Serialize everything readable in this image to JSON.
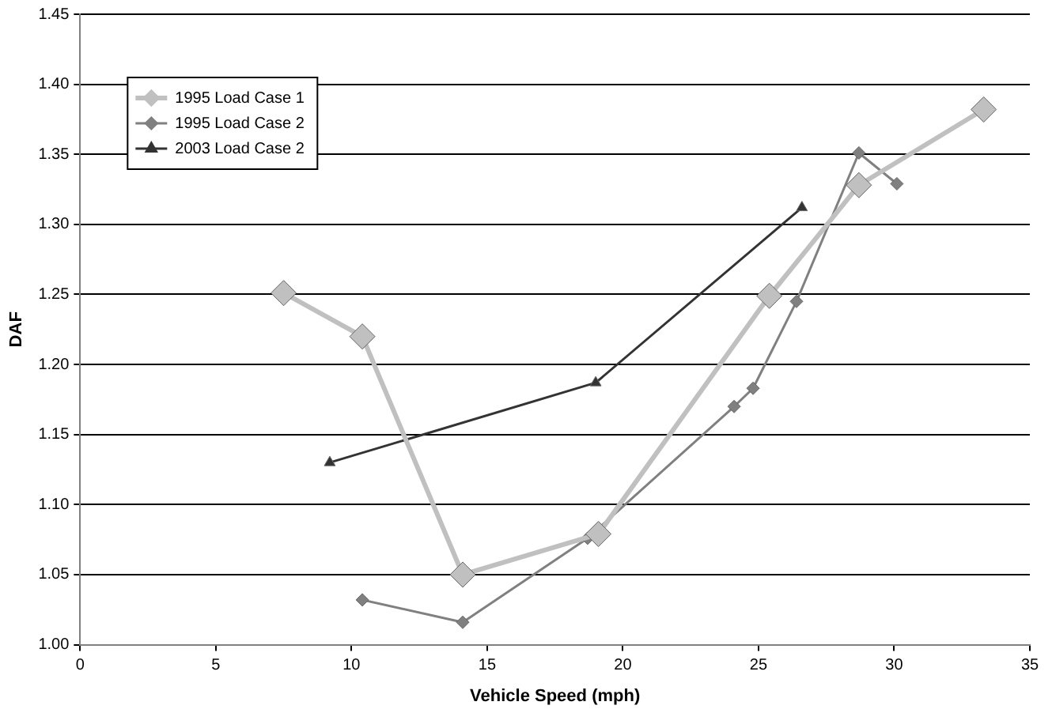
{
  "chart_data": {
    "type": "line",
    "xlabel": "Vehicle Speed (mph)",
    "ylabel": "DAF",
    "xlim": [
      0,
      35
    ],
    "xticks": [
      0,
      5,
      10,
      15,
      20,
      25,
      30,
      35
    ],
    "ylim": [
      1.0,
      1.45
    ],
    "yticks": [
      {
        "value": 1.0,
        "label": "1.00"
      },
      {
        "value": 1.05,
        "label": "1.05"
      },
      {
        "value": 1.1,
        "label": "1.10"
      },
      {
        "value": 1.15,
        "label": "1.15"
      },
      {
        "value": 1.2,
        "label": "1.20"
      },
      {
        "value": 1.25,
        "label": "1.25"
      },
      {
        "value": 1.3,
        "label": "1.30"
      },
      {
        "value": 1.35,
        "label": "1.35"
      },
      {
        "value": 1.4,
        "label": "1.40"
      },
      {
        "value": 1.45,
        "label": "1.45"
      }
    ],
    "grid": "y",
    "legend": "top left",
    "line_style": "solid",
    "series": [
      {
        "name": "1995 Load Case 1",
        "color": "#c0c0c0",
        "marker": "diamond",
        "x": [
          7.5,
          10.4,
          14.1,
          19.1,
          25.4,
          28.7,
          33.3
        ],
        "values": [
          1.251,
          1.22,
          1.05,
          1.079,
          1.249,
          1.328,
          1.382
        ]
      },
      {
        "name": "1995 Load Case 2",
        "color": "#808080",
        "marker": "diamond",
        "x": [
          10.4,
          14.1,
          18.7,
          24.1,
          24.8,
          26.4,
          28.7,
          30.1
        ],
        "values": [
          1.032,
          1.016,
          1.076,
          1.17,
          1.183,
          1.245,
          1.351,
          1.329
        ]
      },
      {
        "name": "2003 Load Case 2",
        "color": "#333333",
        "marker": "triangle",
        "x": [
          9.2,
          19.0,
          26.6
        ],
        "values": [
          1.13,
          1.187,
          1.312
        ]
      }
    ]
  }
}
